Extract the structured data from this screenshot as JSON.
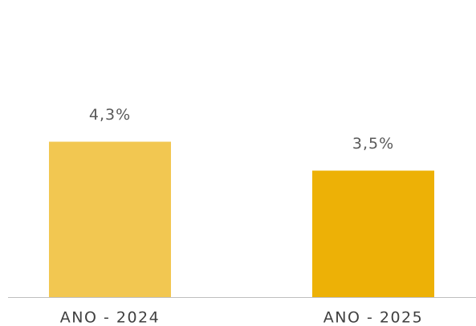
{
  "chart_data": {
    "type": "bar",
    "categories": [
      "ANO - 2024",
      "ANO - 2025"
    ],
    "values": [
      4.3,
      3.5
    ],
    "value_labels": [
      "4,3%",
      "3,5%"
    ],
    "colors": [
      "#f2c751",
      "#edb106"
    ]
  }
}
